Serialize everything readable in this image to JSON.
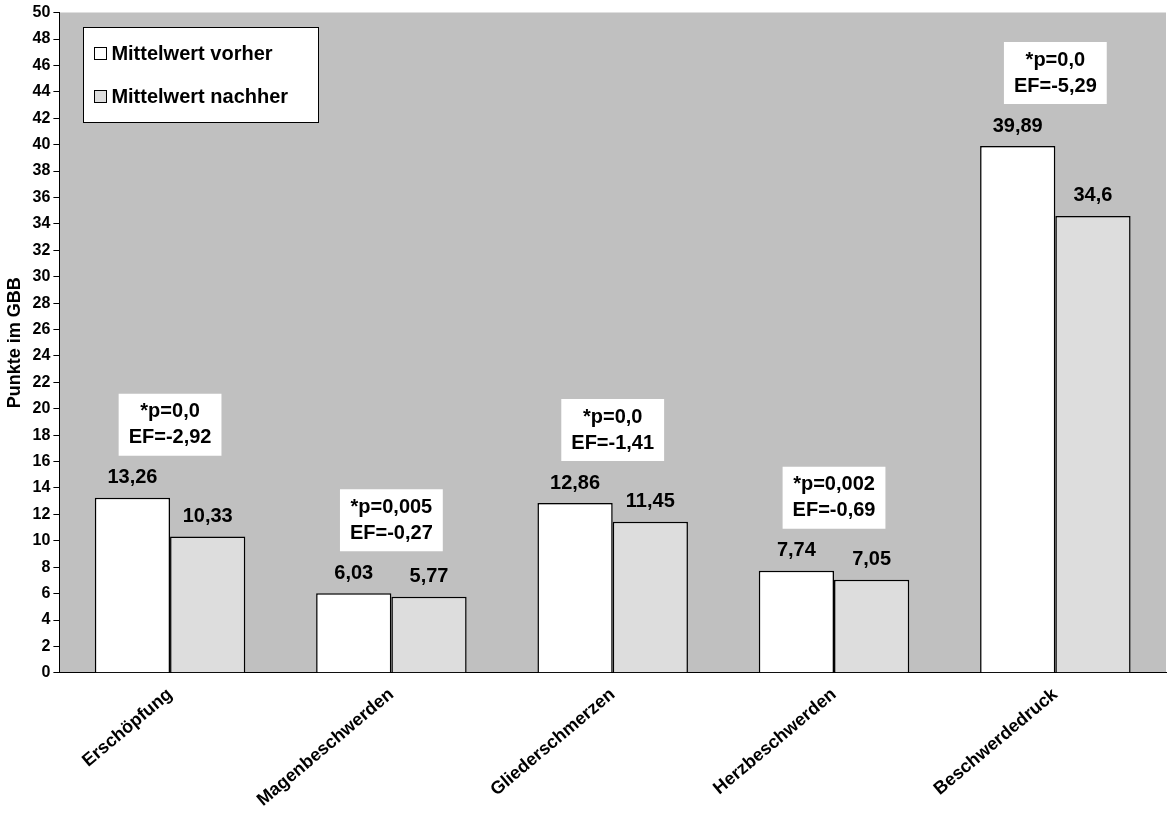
{
  "chart_data": {
    "type": "bar",
    "ylabel": "Punkte im GBB",
    "categories": [
      "Erschöpfung",
      "Magenbeschwerden",
      "Gliederschmerzen",
      "Herzbeschwerden",
      "Beschwerdedruck"
    ],
    "series": [
      {
        "name": "Mittelwert vorher",
        "color": "#ffffff",
        "values": [
          13.26,
          6.03,
          12.86,
          7.74,
          39.89
        ],
        "value_labels": [
          "13,26",
          "6,03",
          "12,86",
          "7,74",
          "39,89"
        ]
      },
      {
        "name": "Mittelwert nachher",
        "color": "#dddddd",
        "values": [
          10.33,
          5.77,
          11.45,
          7.05,
          34.6
        ],
        "value_labels": [
          "10,33",
          "5,77",
          "11,45",
          "7,05",
          "34,6"
        ]
      }
    ],
    "ylim": [
      0,
      50
    ],
    "yticks": [
      0,
      2,
      4,
      6,
      8,
      10,
      12,
      14,
      16,
      18,
      20,
      22,
      24,
      26,
      28,
      30,
      32,
      34,
      36,
      38,
      40,
      42,
      44,
      46,
      48,
      50
    ],
    "grid": false,
    "legend": "top left",
    "annotations": [
      "*p=0,0\nEF=-2,92",
      "*p=0,005\nEF=-0,27",
      "*p=0,0\nEF=-1,41",
      "*p=0,002\nEF=-0,69",
      "*p=0,0\nEF=-5,29"
    ]
  }
}
